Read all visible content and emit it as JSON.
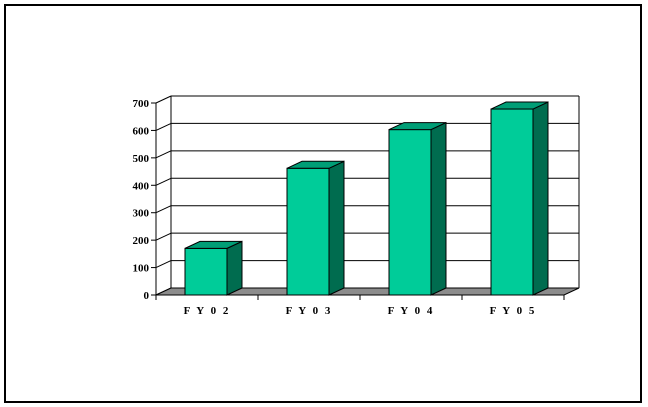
{
  "chart_data": {
    "type": "bar",
    "categories": [
      "FY02",
      "FY03",
      "FY04",
      "FY05"
    ],
    "values": [
      170,
      462,
      603,
      678
    ],
    "ylim": [
      0,
      700
    ],
    "yticks": [
      0,
      100,
      200,
      300,
      400,
      500,
      600,
      700
    ],
    "grid": true,
    "legend": "none",
    "colors": {
      "bar_front": "#00CC99",
      "bar_top": "#009E76",
      "bar_side": "#006C4F",
      "floor": "#8C8C8C",
      "grid": "#000000"
    }
  }
}
